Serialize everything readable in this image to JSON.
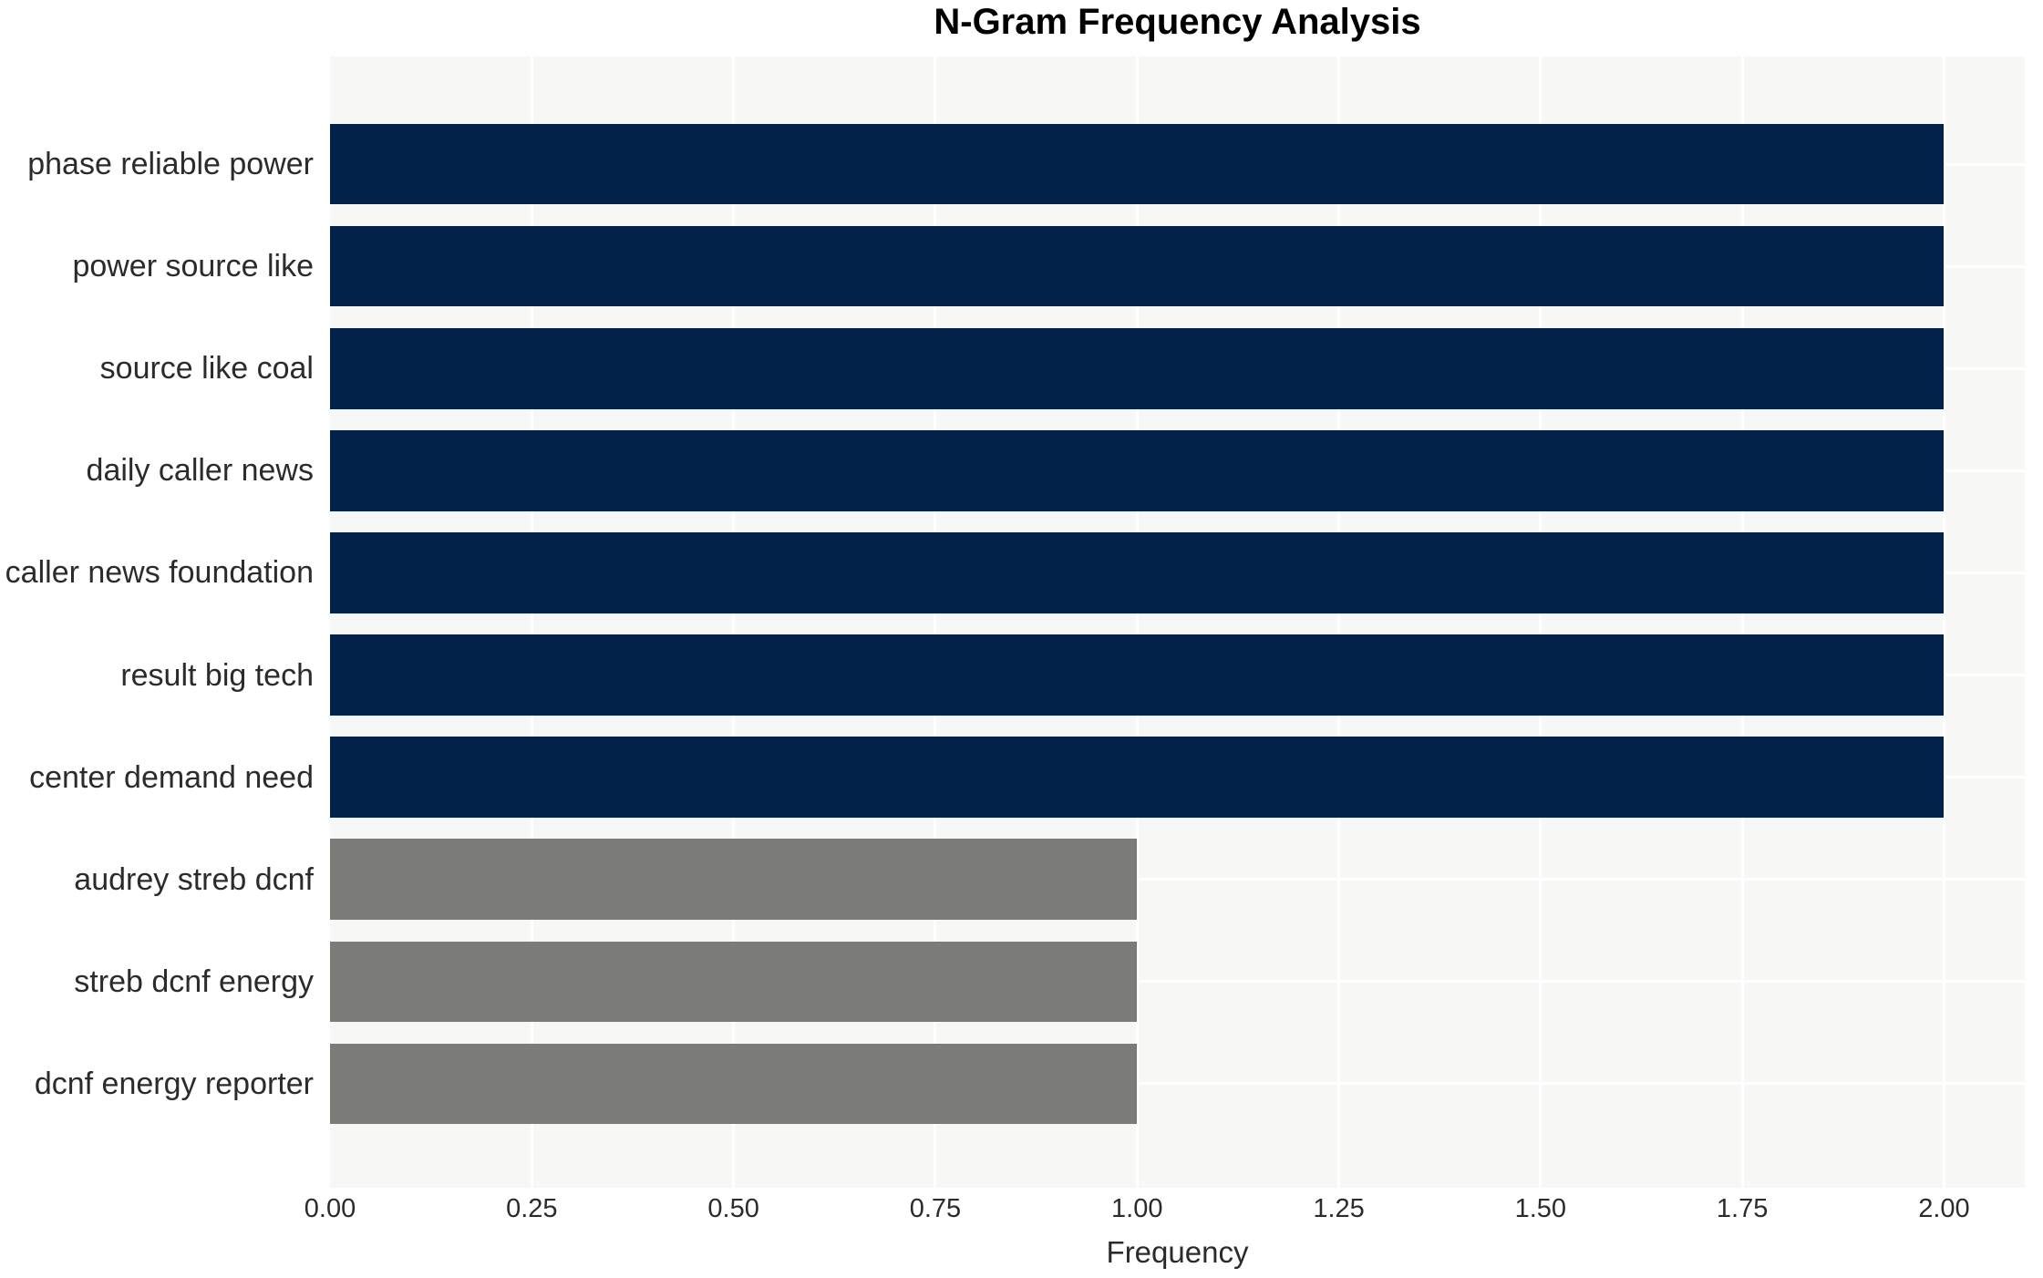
{
  "title": "N-Gram Frequency Analysis",
  "colors": {
    "bar_frequency_2": "#032249",
    "bar_frequency_1": "#7b7b78",
    "plot_background": "#f7f7f6",
    "gridline": "#ffffff",
    "tick_text": "#2b2b2b",
    "title_text": "#000000"
  },
  "chart_data": {
    "type": "bar",
    "orientation": "horizontal",
    "title": "N-Gram Frequency Analysis",
    "xlabel": "Frequency",
    "ylabel": "",
    "grid": true,
    "legend": false,
    "xlim": [
      0,
      2.1
    ],
    "xtick_labels": [
      "0.00",
      "0.25",
      "0.50",
      "0.75",
      "1.00",
      "1.25",
      "1.50",
      "1.75",
      "2.00"
    ],
    "xtick_values": [
      0,
      0.25,
      0.5,
      0.75,
      1.0,
      1.25,
      1.5,
      1.75,
      2.0
    ],
    "categories": [
      "phase reliable power",
      "power source like",
      "source like coal",
      "daily caller news",
      "caller news foundation",
      "result big tech",
      "center demand need",
      "audrey streb dcnf",
      "streb dcnf energy",
      "dcnf energy reporter"
    ],
    "values": [
      2,
      2,
      2,
      2,
      2,
      2,
      2,
      1,
      1,
      1
    ],
    "bar_colors": [
      "#032249",
      "#032249",
      "#032249",
      "#032249",
      "#032249",
      "#032249",
      "#032249",
      "#7b7b78",
      "#7b7b78",
      "#7b7b78"
    ]
  }
}
